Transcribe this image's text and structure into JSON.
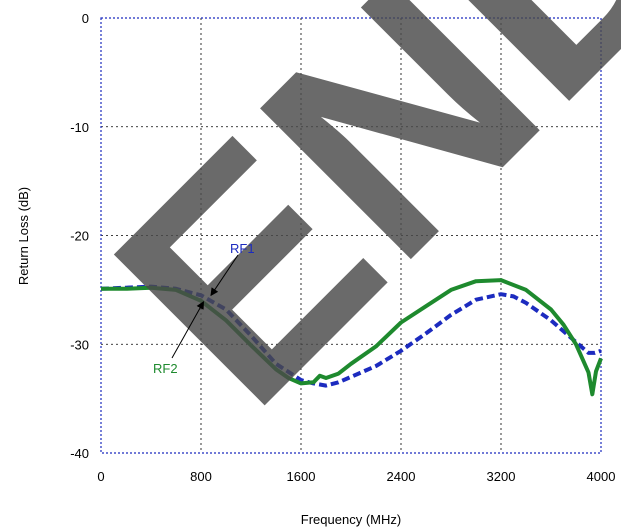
{
  "chart_data": {
    "type": "line",
    "title": "",
    "xlabel": "Frequency (MHz)",
    "ylabel": "Return Loss (dB)",
    "xlim": [
      0,
      4000
    ],
    "ylim": [
      -40,
      0
    ],
    "x_ticks": [
      0,
      800,
      1600,
      2400,
      3200,
      4000
    ],
    "y_ticks": [
      0,
      -10,
      -20,
      -30,
      -40
    ],
    "grid": true,
    "legend": "none",
    "series": [
      {
        "name": "RF1",
        "color": "#1c2bbf",
        "style": "dashed",
        "x": [
          0,
          200,
          400,
          600,
          800,
          1000,
          1200,
          1400,
          1600,
          1700,
          1800,
          1900,
          2000,
          2200,
          2400,
          2600,
          2800,
          3000,
          3200,
          3300,
          3400,
          3600,
          3800,
          3900,
          3950,
          4000
        ],
        "values": [
          -24.9,
          -24.8,
          -24.7,
          -24.9,
          -25.5,
          -26.8,
          -29.2,
          -31.8,
          -33.3,
          -33.6,
          -33.8,
          -33.5,
          -33.0,
          -32.0,
          -30.6,
          -29.0,
          -27.3,
          -25.9,
          -25.4,
          -25.6,
          -26.2,
          -27.8,
          -29.8,
          -30.8,
          -30.8,
          -30.6
        ]
      },
      {
        "name": "RF2",
        "color": "#1e8a2e",
        "style": "solid",
        "x": [
          0,
          200,
          400,
          600,
          800,
          1000,
          1200,
          1400,
          1500,
          1600,
          1700,
          1750,
          1800,
          1900,
          2000,
          2200,
          2400,
          2600,
          2800,
          3000,
          3200,
          3400,
          3600,
          3700,
          3800,
          3900,
          3930,
          3960,
          4000
        ],
        "values": [
          -24.9,
          -24.9,
          -24.8,
          -25.0,
          -26.0,
          -27.8,
          -30.1,
          -32.3,
          -33.1,
          -33.6,
          -33.5,
          -32.9,
          -33.1,
          -32.7,
          -31.8,
          -30.2,
          -28.0,
          -26.5,
          -25.0,
          -24.2,
          -24.1,
          -25.0,
          -26.8,
          -28.2,
          -30.0,
          -32.6,
          -34.6,
          -32.5,
          -31.3
        ]
      }
    ],
    "annotations": [
      {
        "text": "RF1",
        "series": "RF1",
        "points_to_x": 880,
        "points_to_y": -25.5
      },
      {
        "text": "RF2",
        "series": "RF2",
        "points_to_x": 820,
        "points_to_y": -26.1
      }
    ],
    "watermark": "END"
  }
}
